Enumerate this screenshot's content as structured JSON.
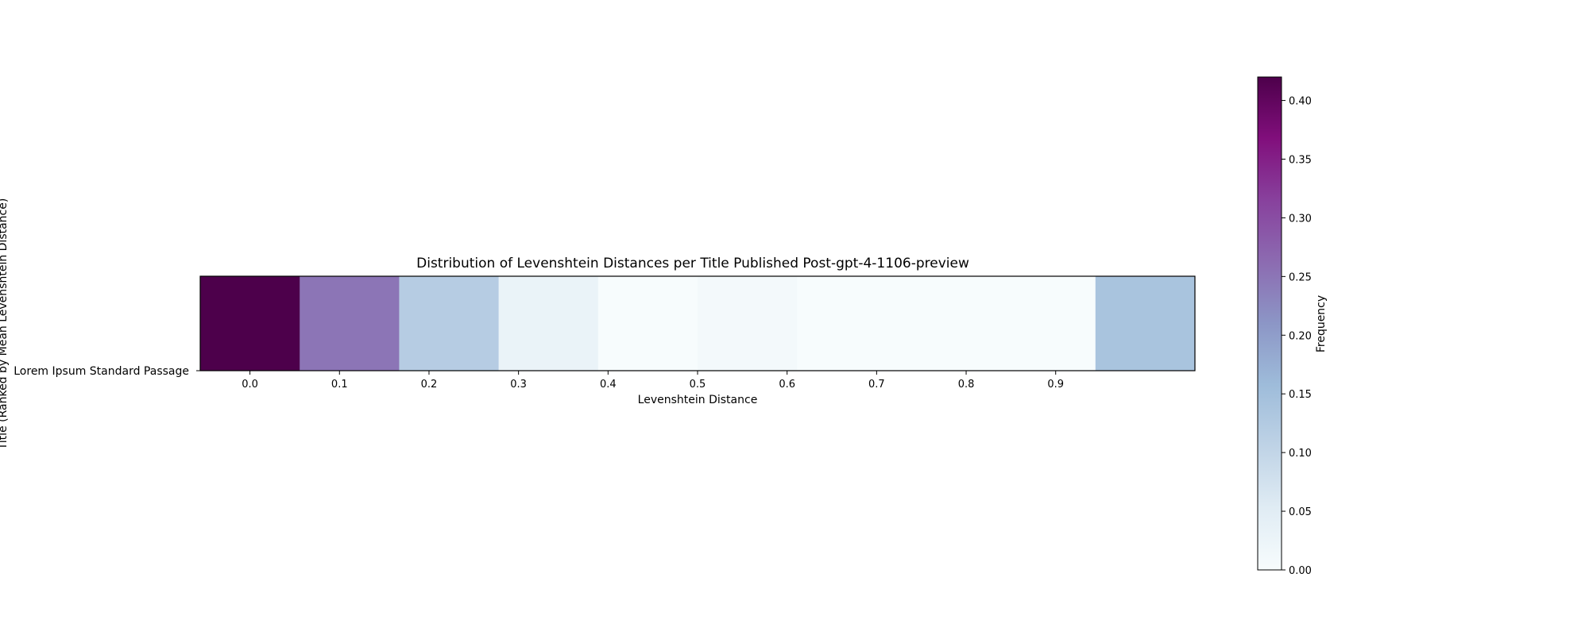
{
  "chart_data": {
    "type": "heatmap",
    "title": "Distribution of Levenshtein Distances per Title Published Post-gpt-4-1106-preview",
    "xlabel": "Levenshtein Distance",
    "ylabel": "Title (Ranked by Mean Levenshtein Distance)",
    "rows": [
      "Lorem Ipsum Standard Passage"
    ],
    "bins": 10,
    "xlim": [
      0,
      1
    ],
    "x_ticks": [
      "0.0",
      "0.1",
      "0.2",
      "0.3",
      "0.4",
      "0.5",
      "0.6",
      "0.7",
      "0.8",
      "0.9"
    ],
    "values": [
      [
        0.42,
        0.25,
        0.12,
        0.03,
        0.0,
        0.01,
        0.0,
        0.0,
        0.0,
        0.14
      ]
    ],
    "colormap": "BuPu",
    "colorbar": {
      "label": "Frequency",
      "range": [
        0,
        0.42
      ],
      "ticks": [
        "0.00",
        "0.05",
        "0.10",
        "0.15",
        "0.20",
        "0.25",
        "0.30",
        "0.35",
        "0.40"
      ]
    }
  }
}
